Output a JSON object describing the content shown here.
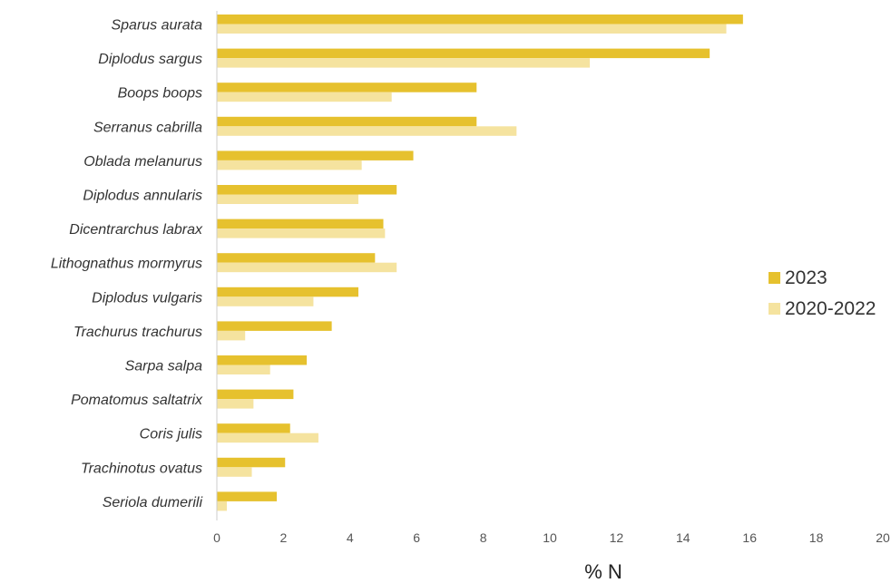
{
  "chart_data": {
    "type": "bar",
    "orientation": "horizontal",
    "title": "",
    "xlabel": "% N",
    "ylabel": "",
    "xlim": [
      0,
      20
    ],
    "xticks": [
      "0",
      "2",
      "4",
      "6",
      "8",
      "10",
      "12",
      "14",
      "16",
      "18",
      "20"
    ],
    "grid": false,
    "legend_position": "right",
    "categories": [
      "Sparus aurata",
      "Diplodus sargus",
      "Boops boops",
      "Serranus cabrilla",
      "Oblada melanurus",
      "Diplodus annularis",
      "Dicentrarchus labrax",
      "Lithognathus mormyrus",
      "Diplodus vulgaris",
      "Trachurus trachurus",
      "Sarpa salpa",
      "Pomatomus saltatrix",
      "Coris julis",
      "Trachinotus ovatus",
      "Seriola dumerili"
    ],
    "series": [
      {
        "name": "2023",
        "color": "#e6c12e",
        "values": [
          15.8,
          14.8,
          7.8,
          7.8,
          5.9,
          5.4,
          5.0,
          4.75,
          4.25,
          3.45,
          2.7,
          2.3,
          2.2,
          2.05,
          1.8
        ]
      },
      {
        "name": "2020-2022",
        "color": "#f5e39f",
        "values": [
          15.3,
          11.2,
          5.25,
          9.0,
          4.35,
          4.25,
          5.05,
          5.4,
          2.9,
          0.85,
          1.6,
          1.1,
          3.05,
          1.05,
          0.3
        ]
      }
    ]
  }
}
